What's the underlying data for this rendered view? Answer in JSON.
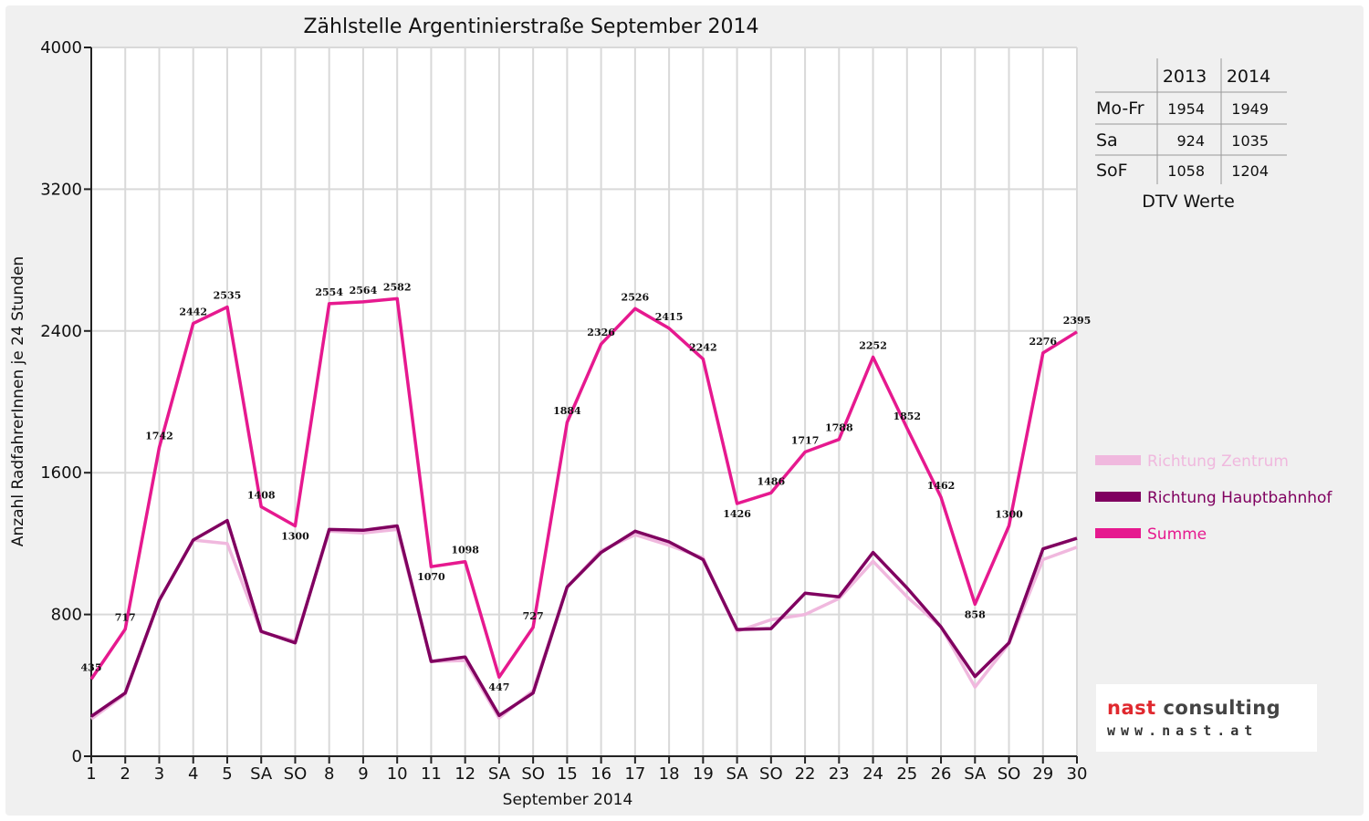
{
  "chart_data": {
    "type": "line",
    "title": "Zählstelle Argentinierstraße September 2014",
    "xlabel": "September 2014",
    "ylabel": "Anzahl RadfahrerInnen je 24 Stunden",
    "ylim": [
      0,
      4000
    ],
    "yticks": [
      0,
      800,
      1600,
      2400,
      3200,
      4000
    ],
    "grid": true,
    "legend_position": "right",
    "x": [
      1,
      2,
      3,
      4,
      5,
      6,
      7,
      8,
      9,
      10,
      11,
      12,
      13,
      14,
      15,
      16,
      17,
      18,
      19,
      20,
      21,
      22,
      23,
      24,
      25,
      26,
      27,
      28,
      29,
      30
    ],
    "x_tick_labels": [
      "1",
      "2",
      "3",
      "4",
      "5",
      "SA",
      "SO",
      "8",
      "9",
      "10",
      "11",
      "12",
      "SA",
      "SO",
      "15",
      "16",
      "17",
      "18",
      "19",
      "SA",
      "SO",
      "22",
      "23",
      "24",
      "25",
      "26",
      "SA",
      "SO",
      "29",
      "30"
    ],
    "sunday_color": "#ff0000",
    "series": [
      {
        "name": "Richtung Zentrum",
        "color": "#f0b8de",
        "values": [
          210,
          350,
          880,
          1220,
          1200,
          700,
          650,
          1270,
          1260,
          1280,
          535,
          540,
          215,
          370,
          955,
          1160,
          1250,
          1190,
          1120,
          705,
          770,
          800,
          890,
          1100,
          900,
          730,
          390,
          635,
          1110,
          1180
        ]
      },
      {
        "name": "Richtung Hauptbahnhof",
        "color": "#800060",
        "values": [
          225,
          357,
          880,
          1220,
          1330,
          705,
          640,
          1280,
          1275,
          1300,
          535,
          560,
          230,
          357,
          955,
          1150,
          1270,
          1210,
          1110,
          715,
          720,
          920,
          900,
          1150,
          950,
          730,
          450,
          640,
          1170,
          1230
        ]
      },
      {
        "name": "Summe",
        "color": "#e6198f",
        "values": [
          435,
          717,
          1742,
          2442,
          2535,
          1408,
          1300,
          2554,
          2564,
          2582,
          1070,
          1098,
          447,
          727,
          1884,
          2326,
          2526,
          2415,
          2242,
          1426,
          1486,
          1717,
          1788,
          2252,
          1852,
          1462,
          858,
          1300,
          2276,
          2395
        ],
        "labels": [
          "435",
          "717",
          "1742",
          "2442",
          "2535",
          "1408",
          "1300",
          "2554",
          "2564",
          "2582",
          "1070",
          "1098",
          "447",
          "727",
          "1884",
          "2326",
          "2526",
          "2415",
          "2242",
          "1426",
          "1486",
          "1717",
          "1788",
          "2252",
          "1852",
          "1462",
          "858",
          "1300",
          "2276",
          "2395"
        ]
      }
    ]
  },
  "dtv_table": {
    "col_headers": [
      "2013",
      "2014"
    ],
    "rows": [
      {
        "label": "Mo-Fr",
        "values": [
          "1954",
          "1949"
        ]
      },
      {
        "label": "Sa",
        "values": [
          "924",
          "1035"
        ]
      },
      {
        "label": "SoF",
        "values": [
          "1058",
          "1204"
        ]
      }
    ],
    "caption": "DTV Werte"
  },
  "logo": {
    "name_red": "nast",
    "name_rest": " consulting",
    "url": "www.nast.at"
  }
}
